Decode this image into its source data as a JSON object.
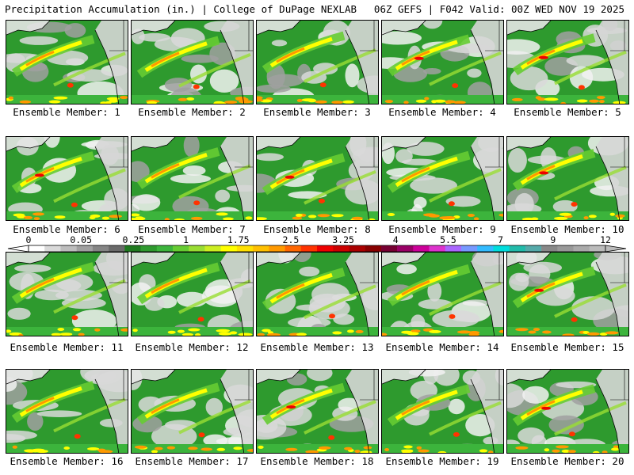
{
  "header": {
    "title": "Precipitation Accumulation (in.) | College of DuPage NEXLAB",
    "run_info": "06Z GEFS | F042 Valid: 00Z WED NOV 19 2025"
  },
  "members": [
    {
      "label": "Ensemble Member: 1"
    },
    {
      "label": "Ensemble Member: 2"
    },
    {
      "label": "Ensemble Member: 3"
    },
    {
      "label": "Ensemble Member: 4"
    },
    {
      "label": "Ensemble Member: 5"
    },
    {
      "label": "Ensemble Member: 6"
    },
    {
      "label": "Ensemble Member: 7"
    },
    {
      "label": "Ensemble Member: 8"
    },
    {
      "label": "Ensemble Member: 9"
    },
    {
      "label": "Ensemble Member: 10"
    },
    {
      "label": "Ensemble Member: 11"
    },
    {
      "label": "Ensemble Member: 12"
    },
    {
      "label": "Ensemble Member: 13"
    },
    {
      "label": "Ensemble Member: 14"
    },
    {
      "label": "Ensemble Member: 15"
    },
    {
      "label": "Ensemble Member: 16"
    },
    {
      "label": "Ensemble Member: 17"
    },
    {
      "label": "Ensemble Member: 18"
    },
    {
      "label": "Ensemble Member: 19"
    },
    {
      "label": "Ensemble Member: 20"
    }
  ],
  "legend": {
    "tick_labels": [
      "0",
      "0.05",
      "0.25",
      "1",
      "1.75",
      "2.5",
      "3.25",
      "4",
      "5.5",
      "7",
      "9",
      "12"
    ],
    "colors": [
      "#ffffff",
      "#d9d9d9",
      "#bdbdbd",
      "#a0a0a0",
      "#858585",
      "#6a6a6a",
      "#1f7a1f",
      "#2e9a2e",
      "#3cb43c",
      "#66cc33",
      "#99dd33",
      "#ccee22",
      "#ffff00",
      "#ffe000",
      "#ffc000",
      "#ff9900",
      "#ff6600",
      "#ff3300",
      "#ee0000",
      "#cc0000",
      "#aa0000",
      "#880000",
      "#770033",
      "#990066",
      "#cc0099",
      "#dd33cc",
      "#aa66ff",
      "#7799ff",
      "#33bbff",
      "#00dddd",
      "#22bbaa",
      "#55aaaa",
      "#888888",
      "#999999",
      "#aaaaaa",
      "#bbbbbb"
    ]
  }
}
